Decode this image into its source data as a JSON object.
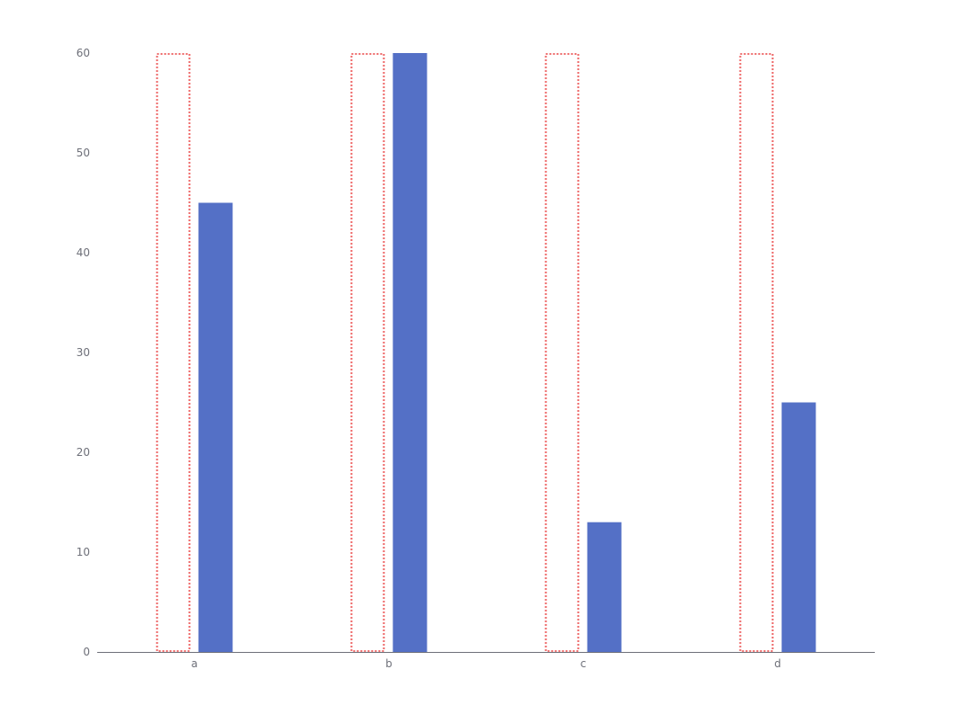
{
  "chart_data": {
    "type": "bar",
    "categories": [
      "a",
      "b",
      "c",
      "d"
    ],
    "series": [
      {
        "style": "dotted-outline",
        "values": [
          60,
          60,
          60,
          60
        ],
        "color": "#ee6666"
      },
      {
        "style": "filled",
        "values": [
          45,
          60,
          13,
          25
        ],
        "color": "#5470c6"
      }
    ],
    "ylim": [
      0,
      60
    ],
    "yticks": [
      0,
      10,
      20,
      30,
      40,
      50,
      60
    ],
    "title": "",
    "xlabel": "",
    "ylabel": "",
    "grid": false,
    "legend": "none",
    "axis_color": "#6e7079"
  }
}
